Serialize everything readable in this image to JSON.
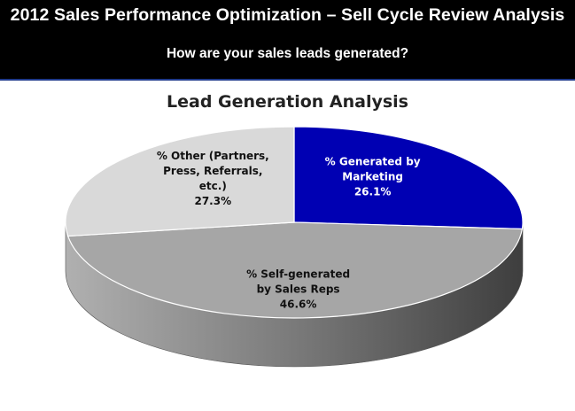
{
  "header": {
    "title": "2012 Sales Performance Optimization – Sell Cycle Review Analysis",
    "subtitle": "How are your sales leads generated?"
  },
  "chart_data": {
    "type": "pie",
    "title": "Lead Generation Analysis",
    "slices": [
      {
        "name": "marketing",
        "label_lines": [
          "% Generated by",
          "Marketing"
        ],
        "value_label": "26.1%",
        "value": 26.1,
        "color": "#0000b3",
        "text_color": "#ffffff"
      },
      {
        "name": "self-generated",
        "label_lines": [
          "% Self-generated",
          "by Sales Reps"
        ],
        "value_label": "46.6%",
        "value": 46.6,
        "color": "#a6a6a6",
        "text_color": "#111111"
      },
      {
        "name": "other",
        "label_lines": [
          "% Other (Partners,",
          "Press, Referrals,",
          "etc.)"
        ],
        "value_label": "27.3%",
        "value": 27.3,
        "color": "#d9d9d9",
        "text_color": "#111111"
      }
    ]
  }
}
